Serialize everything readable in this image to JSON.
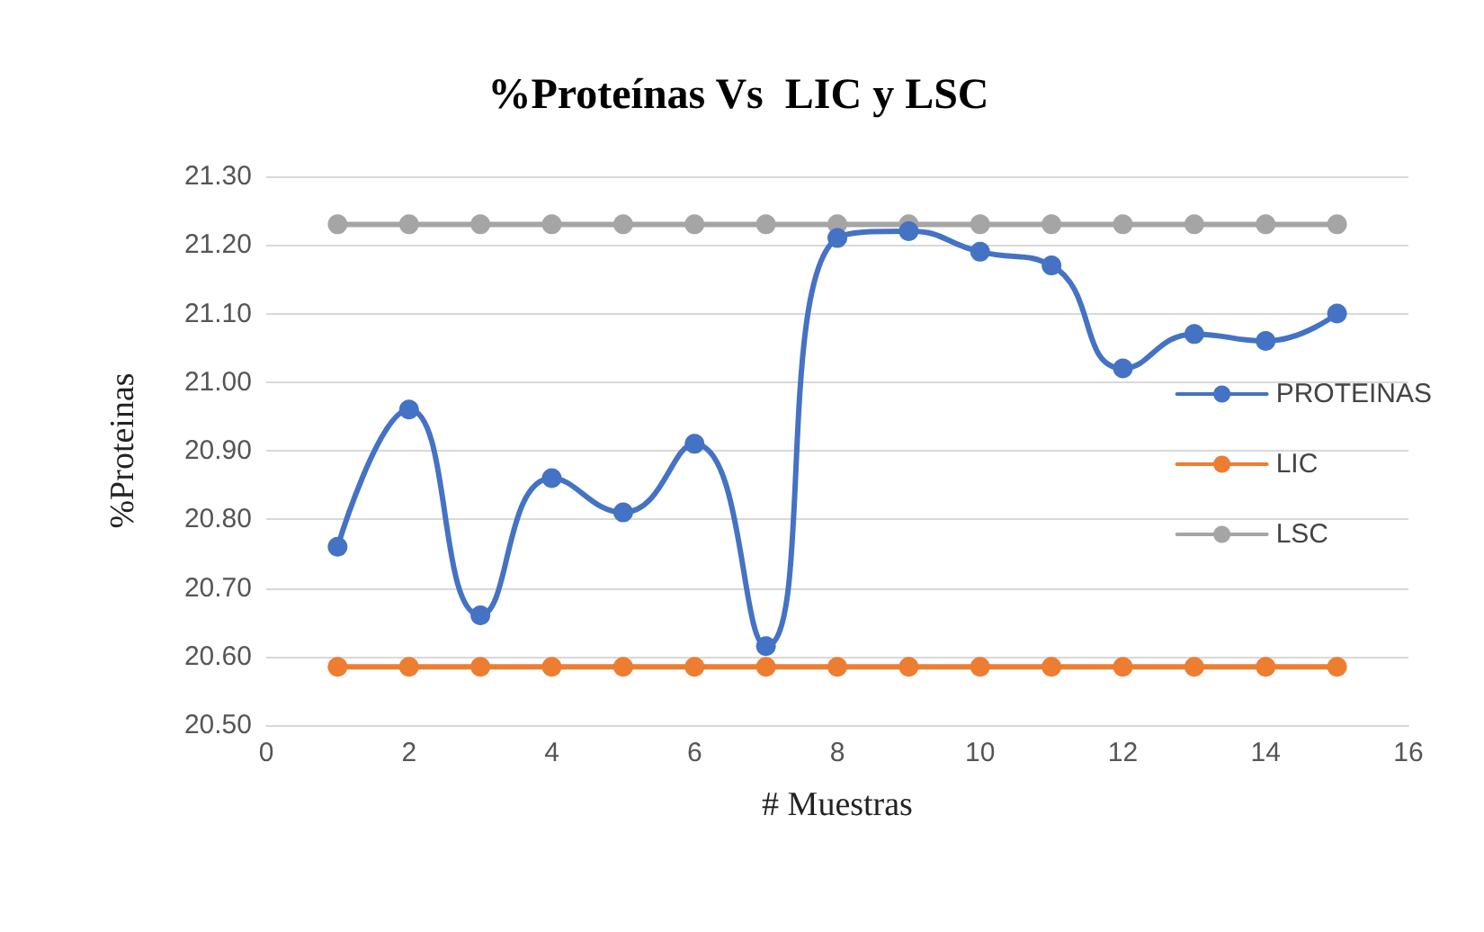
{
  "chart_data": {
    "type": "line",
    "title": "%Proteínas Vs  LIC y LSC",
    "xlabel": "# Muestras",
    "ylabel": "%Proteinas",
    "x": [
      1,
      2,
      3,
      4,
      5,
      6,
      7,
      8,
      9,
      10,
      11,
      12,
      13,
      14,
      15
    ],
    "series": [
      {
        "name": "PROTEINAS",
        "color": "#4472c4",
        "values": [
          20.76,
          20.96,
          20.66,
          20.86,
          20.81,
          20.91,
          20.615,
          21.21,
          21.22,
          21.19,
          21.17,
          21.02,
          21.07,
          21.06,
          21.1
        ]
      },
      {
        "name": "LIC",
        "color": "#ed7d31",
        "values": [
          20.585,
          20.585,
          20.585,
          20.585,
          20.585,
          20.585,
          20.585,
          20.585,
          20.585,
          20.585,
          20.585,
          20.585,
          20.585,
          20.585,
          20.585
        ]
      },
      {
        "name": "LSC",
        "color": "#a5a5a5",
        "values": [
          21.23,
          21.23,
          21.23,
          21.23,
          21.23,
          21.23,
          21.23,
          21.23,
          21.23,
          21.23,
          21.23,
          21.23,
          21.23,
          21.23,
          21.23
        ]
      }
    ],
    "xlim": [
      0,
      16
    ],
    "xticks": [
      0,
      2,
      4,
      6,
      8,
      10,
      12,
      14,
      16
    ],
    "ylim": [
      20.5,
      21.3
    ],
    "yticks": [
      {
        "value": 20.5,
        "label": "20.50"
      },
      {
        "value": 20.6,
        "label": "20.60"
      },
      {
        "value": 20.7,
        "label": "20.70"
      },
      {
        "value": 20.8,
        "label": "20.80"
      },
      {
        "value": 20.9,
        "label": "20.90"
      },
      {
        "value": 21.0,
        "label": "21.00"
      },
      {
        "value": 21.1,
        "label": "21.10"
      },
      {
        "value": 21.2,
        "label": "21.20"
      },
      {
        "value": 21.3,
        "label": "21.30"
      }
    ],
    "grid": "y",
    "legend": "right",
    "marker": "circle",
    "line_style": "solid"
  }
}
